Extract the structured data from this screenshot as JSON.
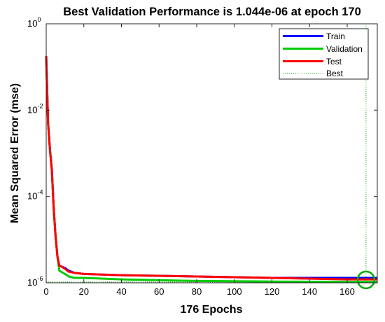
{
  "chart_data": {
    "type": "line",
    "title": "Best Validation Performance is 1.044e-06 at epoch 170",
    "xlabel": "176 Epochs",
    "ylabel": "Mean Squared Error  (mse)",
    "xlim": [
      0,
      176
    ],
    "ylim": [
      1e-06,
      1
    ],
    "yscale": "log",
    "x_ticks": [
      0,
      20,
      40,
      60,
      80,
      100,
      120,
      140,
      160
    ],
    "y_ticks": [
      {
        "base": "10",
        "exp": "-6",
        "value": 1e-06
      },
      {
        "base": "10",
        "exp": "-4",
        "value": 0.0001
      },
      {
        "base": "10",
        "exp": "-2",
        "value": 0.01
      },
      {
        "base": "10",
        "exp": "0",
        "value": 1
      }
    ],
    "grid": false,
    "legend_position": "top-right",
    "series": [
      {
        "name": "Train",
        "color": "#0000ff",
        "points": [
          [
            0,
            0.18
          ],
          [
            1,
            0.005
          ],
          [
            2,
            0.0012
          ],
          [
            3,
            0.0004
          ],
          [
            4,
            5e-05
          ],
          [
            5,
            1.2e-05
          ],
          [
            6,
            4e-06
          ],
          [
            7,
            2.5e-06
          ],
          [
            8,
            2.4e-06
          ],
          [
            10,
            2.2e-06
          ],
          [
            12,
            1.9e-06
          ],
          [
            15,
            1.7e-06
          ],
          [
            20,
            1.6e-06
          ],
          [
            40,
            1.5e-06
          ],
          [
            80,
            1.4e-06
          ],
          [
            120,
            1.3e-06
          ],
          [
            160,
            1.3e-06
          ],
          [
            176,
            1.3e-06
          ]
        ]
      },
      {
        "name": "Validation",
        "color": "#00cc00",
        "points": [
          [
            0,
            0.18
          ],
          [
            1,
            0.005
          ],
          [
            2,
            0.0012
          ],
          [
            3,
            0.0004
          ],
          [
            4,
            5e-05
          ],
          [
            5,
            1.2e-05
          ],
          [
            6,
            4e-06
          ],
          [
            7,
            1.9e-06
          ],
          [
            8,
            1.8e-06
          ],
          [
            10,
            1.6e-06
          ],
          [
            12,
            1.4e-06
          ],
          [
            15,
            1.3e-06
          ],
          [
            20,
            1.3e-06
          ],
          [
            40,
            1.2e-06
          ],
          [
            80,
            1.1e-06
          ],
          [
            120,
            1.07e-06
          ],
          [
            170,
            1.044e-06
          ],
          [
            176,
            1.04e-06
          ]
        ]
      },
      {
        "name": "Test",
        "color": "#ff0000",
        "points": [
          [
            0,
            0.18
          ],
          [
            1,
            0.005
          ],
          [
            2,
            0.0012
          ],
          [
            3,
            0.0004
          ],
          [
            4,
            5e-05
          ],
          [
            5,
            1.2e-05
          ],
          [
            6,
            4e-06
          ],
          [
            7,
            2.5e-06
          ],
          [
            8,
            2.4e-06
          ],
          [
            10,
            2.1e-06
          ],
          [
            12,
            1.8e-06
          ],
          [
            15,
            1.7e-06
          ],
          [
            20,
            1.6e-06
          ],
          [
            40,
            1.5e-06
          ],
          [
            80,
            1.4e-06
          ],
          [
            120,
            1.3e-06
          ],
          [
            160,
            1.2e-06
          ],
          [
            176,
            1.2e-06
          ]
        ]
      }
    ],
    "best": {
      "name": "Best",
      "epoch": 170,
      "value": 1.044e-06,
      "color": "#00aa00"
    }
  }
}
